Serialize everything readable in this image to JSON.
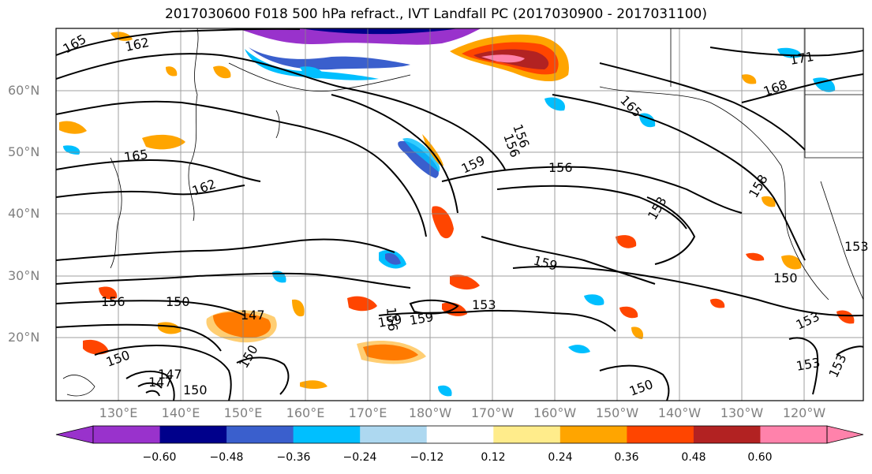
{
  "title": "2017030600 F018 500 hPa refract., IVT Landfall PC (2017030900 - 2017031100)",
  "lat_labels": [
    "60°N",
    "50°N",
    "40°N",
    "30°N",
    "20°N"
  ],
  "lon_labels": [
    "130°E",
    "140°E",
    "150°E",
    "160°E",
    "170°E",
    "180°W",
    "170°W",
    "160°W",
    "150°W",
    "140°W",
    "130°W",
    "120°W"
  ],
  "contour_labels": [
    "165",
    "162",
    "165",
    "162",
    "159",
    "156",
    "159",
    "156",
    "153",
    "159",
    "150",
    "150",
    "156",
    "147",
    "156",
    "153",
    "159",
    "153",
    "150",
    "147",
    "153",
    "147",
    "150",
    "150",
    "153",
    "150",
    "168",
    "171",
    "165",
    "156",
    "158",
    "153"
  ],
  "colorbar": {
    "ticks": [
      "−0.60",
      "−0.48",
      "−0.36",
      "−0.24",
      "−0.12",
      "0.12",
      "0.24",
      "0.36",
      "0.48",
      "0.60"
    ],
    "colors": [
      "#9932cc",
      "#00008b",
      "#3a5fcd",
      "#00bfff",
      "#add8f0",
      "#ffffff",
      "#ffec8b",
      "#ffa500",
      "#ff4500",
      "#b22222",
      "#ff82ab"
    ]
  },
  "map": {
    "land_color": "#ffffff",
    "grid": true,
    "projection": "cylindrical"
  }
}
